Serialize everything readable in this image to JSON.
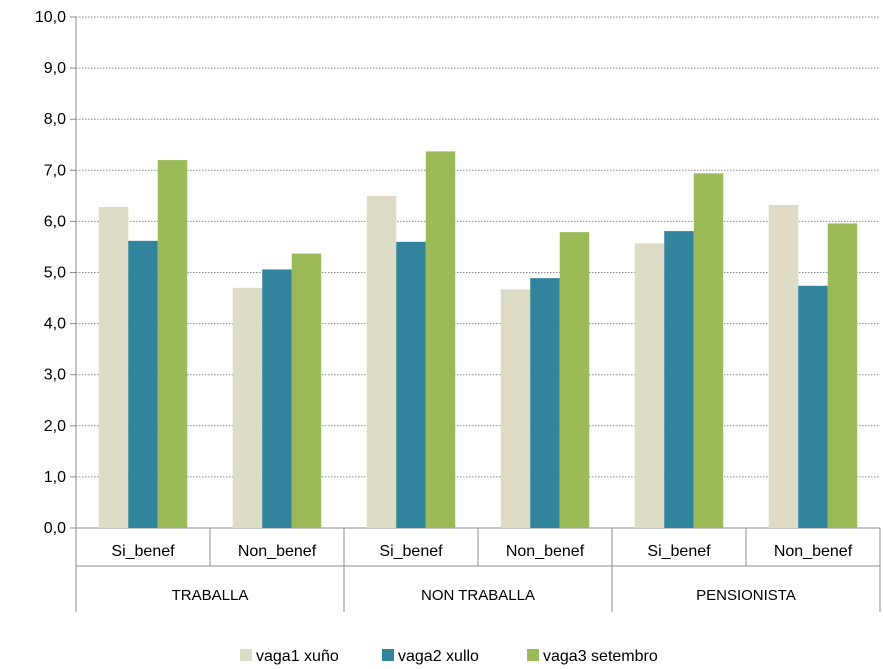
{
  "chart_data": {
    "type": "bar",
    "title": "",
    "xlabel": "",
    "ylabel": "",
    "ylim": [
      0,
      10
    ],
    "ytick_step": 1,
    "ytick_labels": [
      "0,0",
      "1,0",
      "2,0",
      "3,0",
      "4,0",
      "5,0",
      "6,0",
      "7,0",
      "8,0",
      "9,0",
      "10,0"
    ],
    "grid": true,
    "legend_position": "bottom",
    "groups": [
      {
        "label": "TRABALLA",
        "categories": [
          "Si_benef",
          "Non_benef"
        ]
      },
      {
        "label": "NON TRABALLA",
        "categories": [
          "Si_benef",
          "Non_benef"
        ]
      },
      {
        "label": "PENSIONISTA",
        "categories": [
          "Si_benef",
          "Non_benef"
        ]
      }
    ],
    "series": [
      {
        "name": "vaga1 xuño",
        "color": "#dddac5",
        "values": [
          6.28,
          4.7,
          6.5,
          4.67,
          5.57,
          6.32
        ]
      },
      {
        "name": "vaga2 xullo",
        "color": "#31849b",
        "values": [
          5.62,
          5.06,
          5.6,
          4.89,
          5.81,
          4.74
        ]
      },
      {
        "name": "vaga3 setembro",
        "color": "#9bbb59",
        "values": [
          7.2,
          5.37,
          7.37,
          5.79,
          6.94,
          5.96
        ]
      }
    ]
  }
}
